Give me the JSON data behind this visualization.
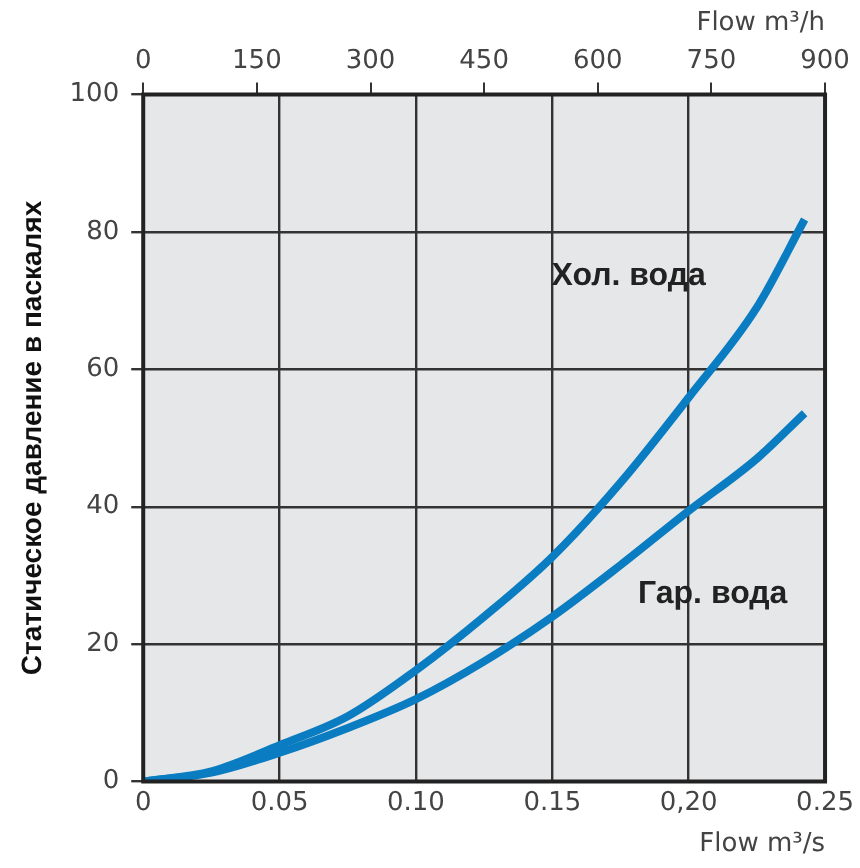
{
  "chart_data": {
    "type": "line",
    "xlabel": "Flow m³/s",
    "x2label": "Flow m³/h",
    "ylabel": "Статическое давление в паскалях",
    "x": [
      0,
      0.025,
      0.05,
      0.075,
      0.1,
      0.125,
      0.15,
      0.175,
      0.2,
      0.225,
      0.2425
    ],
    "series": [
      {
        "name": "Хол. вода",
        "color": "#0a7cc1",
        "values": [
          0,
          1.5,
          5.3,
          9.5,
          16.2,
          24,
          32.7,
          43.5,
          55.9,
          69,
          81.8
        ]
      },
      {
        "name": "Гар. вода",
        "color": "#0a7cc1",
        "values": [
          0,
          1.3,
          4.2,
          7.8,
          12,
          17.5,
          24,
          31.5,
          39.4,
          47,
          53.6
        ]
      }
    ],
    "xlim": [
      0,
      0.25
    ],
    "xticks": [
      0,
      {
        "value": 0.05,
        "label": "0.05"
      },
      {
        "value": 0.1,
        "label": "0.10"
      },
      {
        "value": 0.15,
        "label": "0.15"
      },
      {
        "value": 0.2,
        "label": "0,20"
      },
      {
        "value": 0.25,
        "label": "0.25"
      }
    ],
    "x2lim": [
      0,
      900
    ],
    "x2ticks": [
      0,
      150,
      300,
      450,
      600,
      750,
      900
    ],
    "ylim": [
      0,
      100
    ],
    "yticks": [
      0,
      20,
      40,
      60,
      80,
      100
    ],
    "grid": true,
    "legend": false,
    "marker": "none",
    "line_style": "solid"
  }
}
